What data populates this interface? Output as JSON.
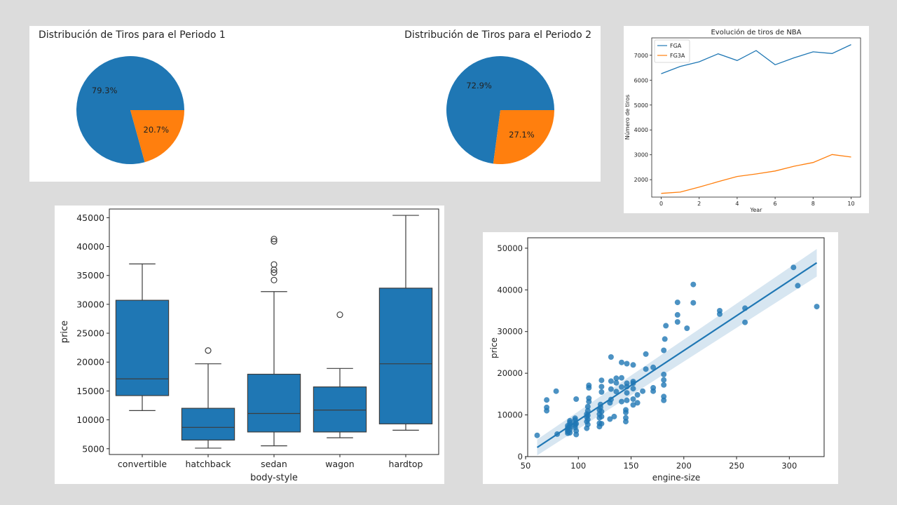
{
  "chart_data": [
    {
      "type": "pie",
      "title": "Distribución de Tiros para el Periodo 1",
      "values": [
        79.3,
        20.7
      ],
      "labels": [
        "79.3%",
        "20.7%"
      ],
      "colors": [
        "#1f77b4",
        "#ff7f0e"
      ]
    },
    {
      "type": "pie",
      "title": "Distribución de Tiros para el Periodo 2",
      "values": [
        72.9,
        27.1
      ],
      "labels": [
        "72.9%",
        "27.1%"
      ],
      "colors": [
        "#1f77b4",
        "#ff7f0e"
      ]
    },
    {
      "type": "line",
      "title": "Evolución de tiros de NBA",
      "xlabel": "Year",
      "ylabel": "Número de tiros",
      "x": [
        0,
        1,
        2,
        3,
        4,
        5,
        6,
        7,
        8,
        9,
        10
      ],
      "xlim": [
        -0.5,
        10.5
      ],
      "ylim": [
        1300,
        7700
      ],
      "xticks": [
        0,
        2,
        4,
        6,
        8,
        10
      ],
      "yticks": [
        2000,
        3000,
        4000,
        5000,
        6000,
        7000
      ],
      "legend_position": "top-left",
      "series": [
        {
          "name": "FGA",
          "color": "#1f77b4",
          "values": [
            6260,
            6550,
            6740,
            7060,
            6790,
            7190,
            6620,
            6900,
            7140,
            7070,
            7430
          ]
        },
        {
          "name": "FG3A",
          "color": "#ff7f0e",
          "values": [
            1450,
            1500,
            1700,
            1920,
            2130,
            2230,
            2350,
            2540,
            2690,
            3010,
            2910
          ]
        }
      ]
    },
    {
      "type": "box",
      "xlabel": "body-style",
      "ylabel": "price",
      "ylim": [
        4000,
        46500
      ],
      "yticks": [
        5000,
        10000,
        15000,
        20000,
        25000,
        30000,
        35000,
        40000,
        45000
      ],
      "color": "#1f77b4",
      "categories": [
        "convertible",
        "hatchback",
        "sedan",
        "wagon",
        "hardtop"
      ],
      "boxes": [
        {
          "whisker_low": 11600,
          "q1": 14200,
          "median": 17100,
          "q3": 30700,
          "whisker_high": 37000,
          "outliers": []
        },
        {
          "whisker_low": 5100,
          "q1": 6500,
          "median": 8700,
          "q3": 12000,
          "whisker_high": 19700,
          "outliers": [
            22000
          ]
        },
        {
          "whisker_low": 5500,
          "q1": 7900,
          "median": 11100,
          "q3": 17900,
          "whisker_high": 32200,
          "outliers": [
            34200,
            35500,
            36000,
            36900,
            40900,
            41300
          ]
        },
        {
          "whisker_low": 6900,
          "q1": 7900,
          "median": 11700,
          "q3": 15700,
          "whisker_high": 18900,
          "outliers": [
            28200
          ]
        },
        {
          "whisker_low": 8200,
          "q1": 9300,
          "median": 19700,
          "q3": 32800,
          "whisker_high": 45400,
          "outliers": []
        }
      ]
    },
    {
      "type": "scatter",
      "xlabel": "engine-size",
      "ylabel": "price",
      "xlim": [
        52,
        333
      ],
      "ylim": [
        0,
        52500
      ],
      "xticks": [
        50,
        100,
        150,
        200,
        250,
        300
      ],
      "yticks": [
        0,
        10000,
        20000,
        30000,
        40000,
        50000
      ],
      "color": "#1f77b4",
      "regression": {
        "x": [
          61,
          326
        ],
        "y": [
          2200,
          46500
        ]
      },
      "confidence_band": {
        "x": [
          61,
          326
        ],
        "lower": [
          300,
          43200
        ],
        "upper": [
          4100,
          49800
        ]
      },
      "points": [
        [
          61,
          5100
        ],
        [
          70,
          11000
        ],
        [
          70,
          11800
        ],
        [
          70,
          13600
        ],
        [
          79,
          15700
        ],
        [
          80,
          5400
        ],
        [
          90,
          5600
        ],
        [
          90,
          6000
        ],
        [
          90,
          6300
        ],
        [
          90,
          6900
        ],
        [
          90,
          7400
        ],
        [
          92,
          5700
        ],
        [
          92,
          6500
        ],
        [
          92,
          7100
        ],
        [
          92,
          7600
        ],
        [
          92,
          8200
        ],
        [
          92,
          8600
        ],
        [
          97,
          7000
        ],
        [
          97,
          7500
        ],
        [
          97,
          8000
        ],
        [
          97,
          8800
        ],
        [
          97,
          9200
        ],
        [
          98,
          5300
        ],
        [
          98,
          6200
        ],
        [
          98,
          7900
        ],
        [
          98,
          13800
        ],
        [
          108,
          6800
        ],
        [
          108,
          8400
        ],
        [
          108,
          9500
        ],
        [
          108,
          10200
        ],
        [
          109,
          7700
        ],
        [
          109,
          8900
        ],
        [
          109,
          9900
        ],
        [
          109,
          11000
        ],
        [
          109,
          12000
        ],
        [
          110,
          13200
        ],
        [
          110,
          14000
        ],
        [
          110,
          16500
        ],
        [
          110,
          17100
        ],
        [
          120,
          7200
        ],
        [
          120,
          8000
        ],
        [
          120,
          9300
        ],
        [
          120,
          10200
        ],
        [
          120,
          11200
        ],
        [
          121,
          11800
        ],
        [
          121,
          12500
        ],
        [
          122,
          7900
        ],
        [
          122,
          9600
        ],
        [
          122,
          10800
        ],
        [
          122,
          15500
        ],
        [
          122,
          16800
        ],
        [
          122,
          18300
        ],
        [
          130,
          9000
        ],
        [
          130,
          12900
        ],
        [
          131,
          13700
        ],
        [
          131,
          16200
        ],
        [
          131,
          18100
        ],
        [
          131,
          23900
        ],
        [
          134,
          9600
        ],
        [
          136,
          15600
        ],
        [
          136,
          17700
        ],
        [
          136,
          18800
        ],
        [
          141,
          13200
        ],
        [
          141,
          16700
        ],
        [
          141,
          18900
        ],
        [
          141,
          22600
        ],
        [
          145,
          8400
        ],
        [
          145,
          9300
        ],
        [
          145,
          10600
        ],
        [
          145,
          11200
        ],
        [
          146,
          13500
        ],
        [
          146,
          15300
        ],
        [
          146,
          16800
        ],
        [
          146,
          17600
        ],
        [
          146,
          22300
        ],
        [
          152,
          12400
        ],
        [
          152,
          13800
        ],
        [
          152,
          16300
        ],
        [
          152,
          17600
        ],
        [
          152,
          18000
        ],
        [
          152,
          22000
        ],
        [
          156,
          12900
        ],
        [
          156,
          14800
        ],
        [
          161,
          15700
        ],
        [
          164,
          21000
        ],
        [
          164,
          24600
        ],
        [
          171,
          15700
        ],
        [
          171,
          16500
        ],
        [
          171,
          21400
        ],
        [
          181,
          13500
        ],
        [
          181,
          14400
        ],
        [
          181,
          17200
        ],
        [
          181,
          18400
        ],
        [
          181,
          19700
        ],
        [
          181,
          25500
        ],
        [
          182,
          28200
        ],
        [
          183,
          31400
        ],
        [
          194,
          32300
        ],
        [
          194,
          34000
        ],
        [
          194,
          37000
        ],
        [
          203,
          30800
        ],
        [
          209,
          36900
        ],
        [
          209,
          41300
        ],
        [
          234,
          34200
        ],
        [
          234,
          35000
        ],
        [
          258,
          32200
        ],
        [
          258,
          35600
        ],
        [
          304,
          45400
        ],
        [
          308,
          41000
        ],
        [
          326,
          36000
        ]
      ]
    }
  ]
}
